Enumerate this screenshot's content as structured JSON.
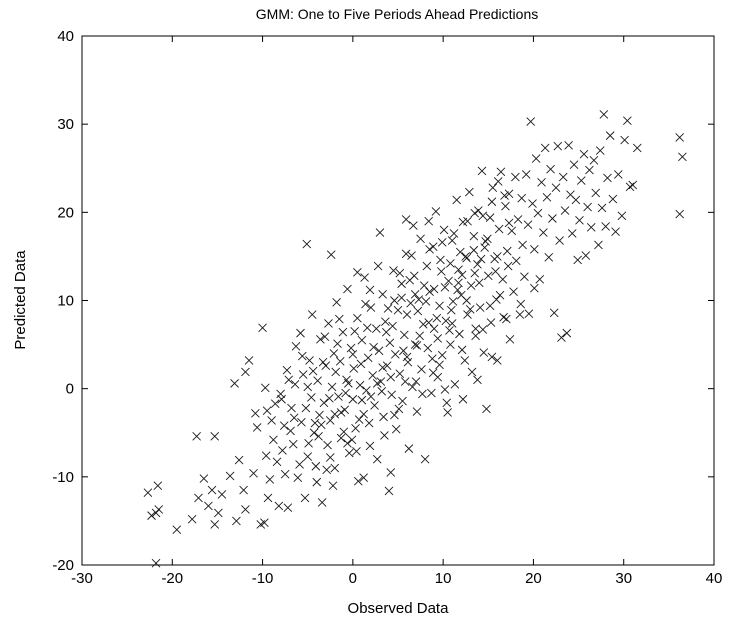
{
  "chart_data": {
    "type": "scatter",
    "title": "GMM: One to Five Periods Ahead Predictions",
    "xlabel": "Observed Data",
    "ylabel": "Predicted Data",
    "xlim": [
      -30,
      40
    ],
    "ylim": [
      -20,
      40
    ],
    "xticks": [
      -30,
      -20,
      -10,
      0,
      10,
      20,
      30,
      40
    ],
    "yticks": [
      -20,
      -10,
      0,
      10,
      20,
      30,
      40
    ],
    "grid": false,
    "marker": "x",
    "marker_color": "#1a1a1a",
    "points": [
      [
        -22.7,
        -11.8
      ],
      [
        -22.3,
        -14.4
      ],
      [
        -21.8,
        -14.1
      ],
      [
        -21.6,
        -11.0
      ],
      [
        -21.5,
        -13.7
      ],
      [
        -21.8,
        -19.8
      ],
      [
        -19.5,
        -16.0
      ],
      [
        -17.8,
        -14.8
      ],
      [
        -17.1,
        -12.4
      ],
      [
        -16.5,
        -10.2
      ],
      [
        -16.0,
        -13.3
      ],
      [
        -15.6,
        -11.5
      ],
      [
        -15.3,
        -15.4
      ],
      [
        -14.9,
        -14.1
      ],
      [
        -14.5,
        -12.0
      ],
      [
        -17.3,
        -5.4
      ],
      [
        -15.3,
        -5.4
      ],
      [
        -13.6,
        -9.9
      ],
      [
        -12.9,
        -15.0
      ],
      [
        -12.6,
        -8.1
      ],
      [
        -12.1,
        -11.5
      ],
      [
        -11.9,
        -13.7
      ],
      [
        -11.0,
        -9.6
      ],
      [
        -10.2,
        -15.4
      ],
      [
        -9.8,
        -15.2
      ],
      [
        -9.6,
        -7.6
      ],
      [
        -9.2,
        -10.3
      ],
      [
        -9.4,
        -12.4
      ],
      [
        -8.8,
        -5.8
      ],
      [
        -8.4,
        -8.3
      ],
      [
        -8.2,
        -13.3
      ],
      [
        -13.1,
        0.6
      ],
      [
        -11.9,
        1.9
      ],
      [
        -11.5,
        3.2
      ],
      [
        -10.8,
        -2.8
      ],
      [
        -10.6,
        -4.4
      ],
      [
        -10.0,
        6.9
      ],
      [
        -9.7,
        0.1
      ],
      [
        -9.5,
        -2.5
      ],
      [
        -7.9,
        -1.2
      ],
      [
        -7.6,
        -4.2
      ],
      [
        -7.5,
        -9.7
      ],
      [
        -7.2,
        -13.5
      ],
      [
        -6.8,
        -2.2
      ],
      [
        -6.6,
        -6.3
      ],
      [
        -6.3,
        4.8
      ],
      [
        -6.1,
        -10.1
      ],
      [
        -5.7,
        -3.8
      ],
      [
        -5.5,
        1.6
      ],
      [
        -5.3,
        -12.4
      ],
      [
        -5.0,
        -7.7
      ],
      [
        -4.8,
        3.2
      ],
      [
        -4.6,
        -1.0
      ],
      [
        -4.5,
        8.4
      ],
      [
        -4.3,
        -5.0
      ],
      [
        -5.1,
        16.4
      ],
      [
        -4.1,
        -8.8
      ],
      [
        -3.9,
        0.9
      ],
      [
        -3.7,
        -3.0
      ],
      [
        -3.6,
        5.6
      ],
      [
        -3.4,
        -12.9
      ],
      [
        -3.2,
        -1.6
      ],
      [
        -3.0,
        2.6
      ],
      [
        -2.8,
        -6.4
      ],
      [
        -2.7,
        7.4
      ],
      [
        -2.5,
        -3.6
      ],
      [
        -2.3,
        0.2
      ],
      [
        -2.1,
        4.0
      ],
      [
        -2.0,
        -9.0
      ],
      [
        -1.8,
        9.8
      ],
      [
        -1.6,
        -0.9
      ],
      [
        -1.4,
        3.1
      ],
      [
        -1.3,
        -5.6
      ],
      [
        -1.1,
        6.4
      ],
      [
        -0.9,
        -2.4
      ],
      [
        -0.7,
        1.0
      ],
      [
        -0.6,
        11.3
      ],
      [
        -0.4,
        -7.3
      ],
      [
        -0.2,
        4.6
      ],
      [
        0.0,
        -1.2
      ],
      [
        0.1,
        2.3
      ],
      [
        0.3,
        -4.5
      ],
      [
        0.5,
        8.0
      ],
      [
        0.6,
        -10.5
      ],
      [
        0.8,
        0.4
      ],
      [
        1.0,
        5.5
      ],
      [
        1.2,
        -2.9
      ],
      [
        1.3,
        12.6
      ],
      [
        1.5,
        -0.2
      ],
      [
        1.7,
        3.5
      ],
      [
        1.9,
        -6.5
      ],
      [
        2.0,
        9.2
      ],
      [
        2.2,
        1.5
      ],
      [
        2.4,
        -1.9
      ],
      [
        2.6,
        6.8
      ],
      [
        2.7,
        -8.0
      ],
      [
        2.9,
        4.3
      ],
      [
        3.1,
        0.8
      ],
      [
        3.3,
        10.7
      ],
      [
        3.4,
        -3.2
      ],
      [
        3.6,
        7.6
      ],
      [
        3.8,
        2.6
      ],
      [
        4.0,
        -11.6
      ],
      [
        4.1,
        5.2
      ],
      [
        4.3,
        -0.7
      ],
      [
        4.5,
        13.4
      ],
      [
        4.7,
        3.9
      ],
      [
        4.8,
        -4.6
      ],
      [
        5.0,
        8.9
      ],
      [
        5.2,
        1.7
      ],
      [
        5.4,
        11.9
      ],
      [
        5.5,
        -1.4
      ],
      [
        5.7,
        6.1
      ],
      [
        5.9,
        15.3
      ],
      [
        6.1,
        3.0
      ],
      [
        6.2,
        -6.8
      ],
      [
        6.4,
        9.7
      ],
      [
        6.6,
        0.2
      ],
      [
        6.8,
        12.8
      ],
      [
        6.9,
        5.0
      ],
      [
        7.1,
        -2.6
      ],
      [
        7.3,
        10.1
      ],
      [
        7.5,
        17.0
      ],
      [
        7.6,
        2.2
      ],
      [
        7.8,
        7.3
      ],
      [
        8.0,
        -8.0
      ],
      [
        8.2,
        13.9
      ],
      [
        8.3,
        4.6
      ],
      [
        8.5,
        11.0
      ],
      [
        8.7,
        -0.5
      ],
      [
        8.9,
        16.1
      ],
      [
        9.0,
        6.8
      ],
      [
        9.2,
        20.1
      ],
      [
        9.4,
        1.3
      ],
      [
        9.6,
        9.4
      ],
      [
        9.7,
        14.6
      ],
      [
        9.9,
        3.8
      ],
      [
        10.1,
        18.0
      ],
      [
        10.3,
        7.7
      ],
      [
        10.4,
        -1.6
      ],
      [
        10.6,
        12.2
      ],
      [
        10.8,
        5.0
      ],
      [
        11.0,
        16.8
      ],
      [
        11.1,
        9.9
      ],
      [
        11.3,
        0.5
      ],
      [
        11.5,
        21.4
      ],
      [
        11.7,
        13.5
      ],
      [
        11.8,
        6.2
      ],
      [
        12.0,
        10.6
      ],
      [
        12.2,
        18.9
      ],
      [
        12.4,
        3.2
      ],
      [
        12.5,
        15.0
      ],
      [
        12.7,
        8.4
      ],
      [
        12.9,
        22.3
      ],
      [
        13.1,
        11.7
      ],
      [
        13.2,
        1.9
      ],
      [
        13.4,
        17.3
      ],
      [
        13.6,
        6.8
      ],
      [
        13.8,
        14.1
      ],
      [
        13.9,
        20.2
      ],
      [
        14.1,
        9.2
      ],
      [
        14.3,
        24.7
      ],
      [
        14.5,
        4.1
      ],
      [
        14.6,
        16.0
      ],
      [
        14.8,
        -2.3
      ],
      [
        15.0,
        12.8
      ],
      [
        15.2,
        19.4
      ],
      [
        15.3,
        7.5
      ],
      [
        15.5,
        22.8
      ],
      [
        15.7,
        14.7
      ],
      [
        15.9,
        10.1
      ],
      [
        16.0,
        3.2
      ],
      [
        16.2,
        18.1
      ],
      [
        16.4,
        24.6
      ],
      [
        16.6,
        12.4
      ],
      [
        16.7,
        8.1
      ],
      [
        16.9,
        20.7
      ],
      [
        17.1,
        15.6
      ],
      [
        17.3,
        22.1
      ],
      [
        17.4,
        5.6
      ],
      [
        17.6,
        17.9
      ],
      [
        17.8,
        11.0
      ],
      [
        18.0,
        24.0
      ],
      [
        18.1,
        14.5
      ],
      [
        18.3,
        19.2
      ],
      [
        18.5,
        8.4
      ],
      [
        18.7,
        21.6
      ],
      [
        18.8,
        16.3
      ],
      [
        19.0,
        12.7
      ],
      [
        19.2,
        24.3
      ],
      [
        19.4,
        18.6
      ],
      [
        19.7,
        30.3
      ],
      [
        19.5,
        8.5
      ],
      [
        19.9,
        21.0
      ],
      [
        20.1,
        15.8
      ],
      [
        20.3,
        26.1
      ],
      [
        20.5,
        19.9
      ],
      [
        20.7,
        12.4
      ],
      [
        20.9,
        23.4
      ],
      [
        21.1,
        17.7
      ],
      [
        21.3,
        27.3
      ],
      [
        21.5,
        21.7
      ],
      [
        21.7,
        14.9
      ],
      [
        21.9,
        24.9
      ],
      [
        22.1,
        19.3
      ],
      [
        22.3,
        8.6
      ],
      [
        22.5,
        22.8
      ],
      [
        22.7,
        27.5
      ],
      [
        22.9,
        16.8
      ],
      [
        23.1,
        5.8
      ],
      [
        23.3,
        24.0
      ],
      [
        23.5,
        20.2
      ],
      [
        23.7,
        6.3
      ],
      [
        23.9,
        27.6
      ],
      [
        24.1,
        22.0
      ],
      [
        24.3,
        17.6
      ],
      [
        24.5,
        25.4
      ],
      [
        24.7,
        21.4
      ],
      [
        24.9,
        14.6
      ],
      [
        25.1,
        19.1
      ],
      [
        25.3,
        23.6
      ],
      [
        25.6,
        26.6
      ],
      [
        25.8,
        15.1
      ],
      [
        26.0,
        20.6
      ],
      [
        26.2,
        24.8
      ],
      [
        26.4,
        18.3
      ],
      [
        26.7,
        25.9
      ],
      [
        26.9,
        22.2
      ],
      [
        27.2,
        16.3
      ],
      [
        27.4,
        27.0
      ],
      [
        27.6,
        20.5
      ],
      [
        27.8,
        31.1
      ],
      [
        28.0,
        18.4
      ],
      [
        28.2,
        23.9
      ],
      [
        28.5,
        28.7
      ],
      [
        28.8,
        21.5
      ],
      [
        29.1,
        17.8
      ],
      [
        29.4,
        24.3
      ],
      [
        29.8,
        19.6
      ],
      [
        30.1,
        28.2
      ],
      [
        30.4,
        30.4
      ],
      [
        30.7,
        22.9
      ],
      [
        31.0,
        23.1
      ],
      [
        31.5,
        27.3
      ],
      [
        36.2,
        28.5
      ],
      [
        36.5,
        26.3
      ],
      [
        36.2,
        19.8
      ],
      [
        -8.0,
        -0.6
      ],
      [
        -7.3,
        2.1
      ],
      [
        -6.9,
        -4.8
      ],
      [
        -6.4,
        0.5
      ],
      [
        -5.9,
        -8.6
      ],
      [
        -5.6,
        3.7
      ],
      [
        -5.2,
        -2.2
      ],
      [
        -4.9,
        -6.2
      ],
      [
        -4.4,
        2.0
      ],
      [
        -4.0,
        -10.6
      ],
      [
        -3.5,
        -4.1
      ],
      [
        -3.1,
        5.9
      ],
      [
        -2.6,
        -1.1
      ],
      [
        -2.2,
        -11.0
      ],
      [
        -1.9,
        1.9
      ],
      [
        -1.5,
        7.9
      ],
      [
        -1.0,
        -4.9
      ],
      [
        -0.5,
        0.6
      ],
      [
        0.0,
        3.9
      ],
      [
        0.4,
        -7.1
      ],
      [
        0.9,
        2.8
      ],
      [
        1.4,
        9.6
      ],
      [
        1.8,
        -3.9
      ],
      [
        2.3,
        4.7
      ],
      [
        2.8,
        13.9
      ],
      [
        3.2,
        -0.3
      ],
      [
        3.7,
        6.4
      ],
      [
        4.2,
        1.3
      ],
      [
        4.6,
        10.0
      ],
      [
        5.1,
        -2.3
      ],
      [
        5.6,
        4.3
      ],
      [
        6.0,
        8.4
      ],
      [
        6.5,
        15.1
      ],
      [
        7.0,
        0.8
      ],
      [
        7.4,
        6.0
      ],
      [
        7.9,
        11.7
      ],
      [
        8.4,
        19.0
      ],
      [
        8.8,
        3.4
      ],
      [
        9.3,
        8.0
      ],
      [
        9.8,
        13.3
      ],
      [
        10.2,
        -0.1
      ],
      [
        10.7,
        6.6
      ],
      [
        11.2,
        17.6
      ],
      [
        11.6,
        11.2
      ],
      [
        12.1,
        4.4
      ],
      [
        12.6,
        14.8
      ],
      [
        13.0,
        9.0
      ],
      [
        13.5,
        19.9
      ],
      [
        14.0,
        12.0
      ],
      [
        14.4,
        6.7
      ],
      [
        14.9,
        17.0
      ],
      [
        15.4,
        21.2
      ],
      [
        15.8,
        13.3
      ],
      [
        16.3,
        10.6
      ],
      [
        16.8,
        21.9
      ],
      [
        17.2,
        13.9
      ],
      [
        -9.0,
        -3.6
      ],
      [
        -8.6,
        -1.7
      ],
      [
        -7.8,
        -7.0
      ],
      [
        -7.1,
        1.0
      ],
      [
        -6.5,
        -3.3
      ],
      [
        -5.8,
        6.3
      ],
      [
        -5.0,
        0.2
      ],
      [
        -4.2,
        -3.9
      ],
      [
        -3.3,
        3.0
      ],
      [
        -2.5,
        -7.8
      ],
      [
        -1.7,
        5.1
      ],
      [
        -0.8,
        -0.5
      ],
      [
        0.2,
        6.5
      ],
      [
        1.0,
        -1.3
      ],
      [
        1.9,
        11.2
      ],
      [
        2.7,
        0.6
      ],
      [
        3.5,
        -5.3
      ],
      [
        4.4,
        7.1
      ],
      [
        5.2,
        13.1
      ],
      [
        6.0,
        3.6
      ],
      [
        6.9,
        10.7
      ],
      [
        7.7,
        -0.6
      ],
      [
        8.5,
        15.8
      ],
      [
        9.4,
        5.7
      ],
      [
        10.2,
        11.5
      ],
      [
        11.0,
        7.4
      ],
      [
        11.9,
        15.5
      ],
      [
        12.7,
        19.0
      ],
      [
        13.6,
        6.0
      ],
      [
        14.4,
        19.6
      ],
      [
        15.2,
        9.4
      ],
      [
        16.1,
        23.5
      ],
      [
        3.0,
        17.7
      ],
      [
        -2.4,
        15.2
      ],
      [
        0.5,
        13.2
      ],
      [
        1.2,
        -10.1
      ],
      [
        4.2,
        -9.5
      ],
      [
        -2.9,
        -9.2
      ],
      [
        8.9,
        1.8
      ],
      [
        10.5,
        -2.7
      ],
      [
        12.2,
        -1.2
      ],
      [
        13.8,
        1.0
      ],
      [
        15.4,
        3.6
      ],
      [
        17.0,
        7.9
      ],
      [
        18.6,
        9.6
      ],
      [
        20.1,
        11.4
      ],
      [
        6.7,
        18.5
      ],
      [
        5.9,
        19.2
      ],
      [
        -1.3,
        -2.7
      ],
      [
        -0.6,
        -6.2
      ],
      [
        0.7,
        -3.5
      ],
      [
        2.0,
        -0.9
      ],
      [
        3.3,
        2.4
      ],
      [
        4.6,
        -3.0
      ],
      [
        5.8,
        0.8
      ],
      [
        7.1,
        4.9
      ],
      [
        8.4,
        7.5
      ],
      [
        9.6,
        2.7
      ],
      [
        10.9,
        8.9
      ],
      [
        12.1,
        12.9
      ],
      [
        13.4,
        15.7
      ],
      [
        14.7,
        16.7
      ],
      [
        16.0,
        15.0
      ],
      [
        17.3,
        18.8
      ],
      [
        -3.8,
        -5.4
      ],
      [
        -2.0,
        -2.9
      ],
      [
        -0.1,
        -5.8
      ],
      [
        1.6,
        6.9
      ],
      [
        3.9,
        9.1
      ],
      [
        5.4,
        10.3
      ],
      [
        6.3,
        12.3
      ],
      [
        7.2,
        8.8
      ],
      [
        8.1,
        9.9
      ],
      [
        9.0,
        11.3
      ],
      [
        9.9,
        16.6
      ],
      [
        10.8,
        14.2
      ],
      [
        11.7,
        12.0
      ],
      [
        12.6,
        10.0
      ],
      [
        13.5,
        13.1
      ],
      [
        14.2,
        14.7
      ]
    ]
  }
}
